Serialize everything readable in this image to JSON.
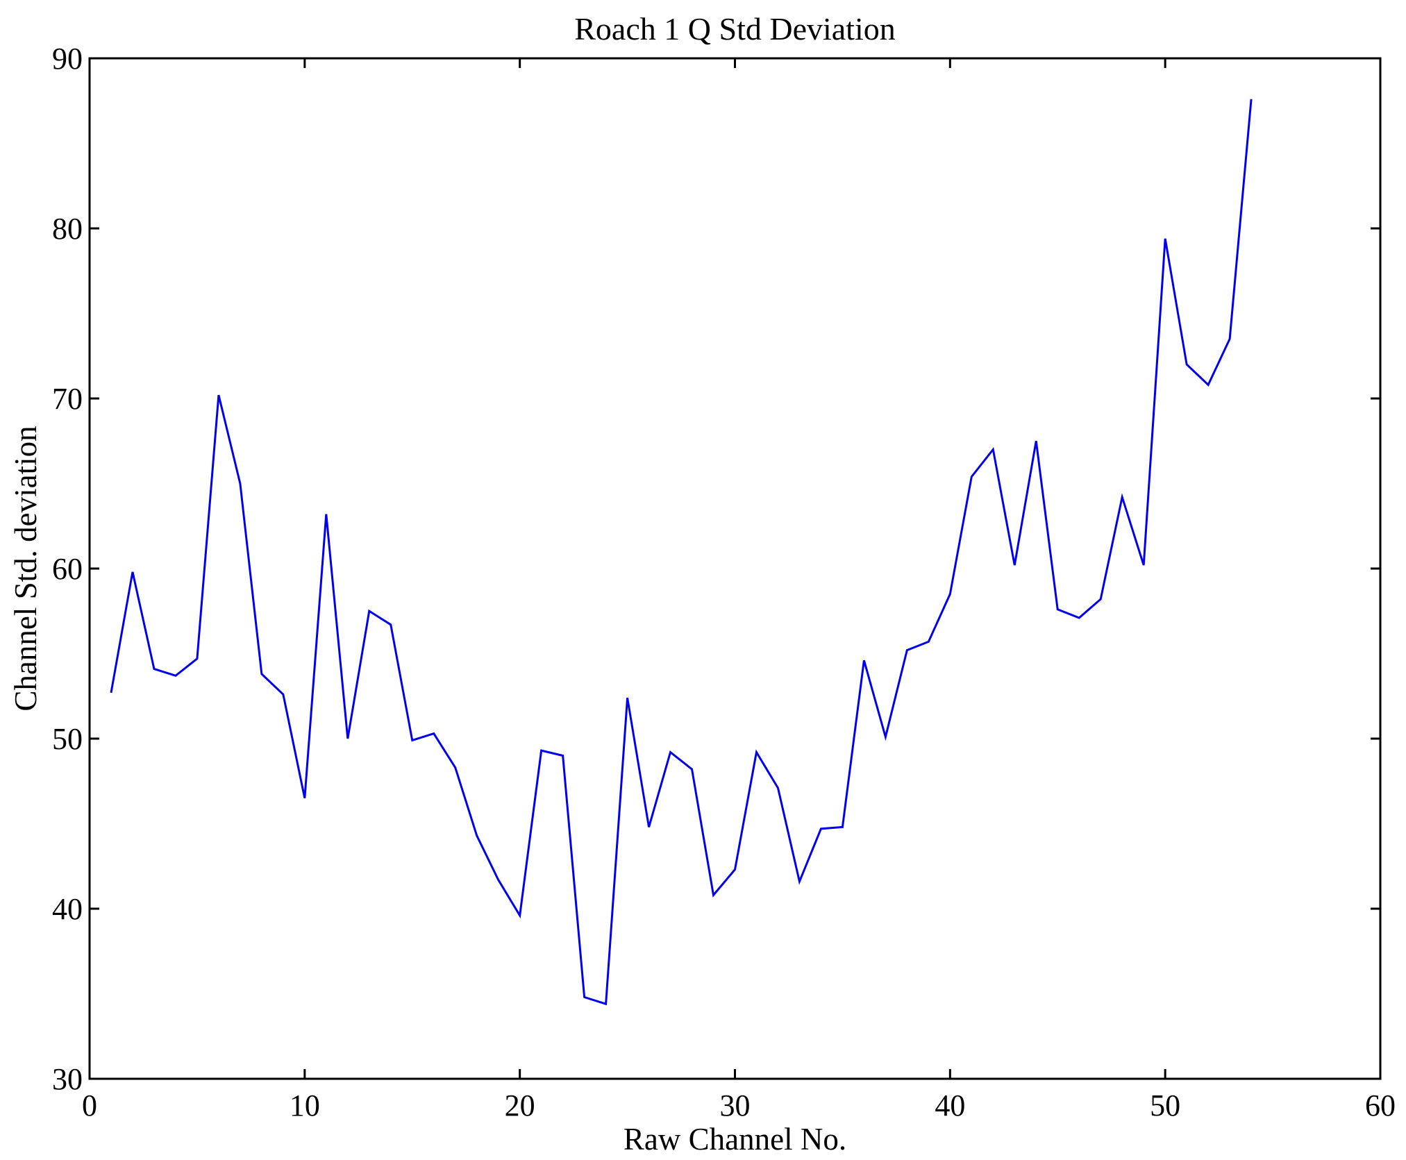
{
  "figure": {
    "title": "Roach 1 Q Std Deviation",
    "background_color": "#ffffff",
    "axis_color": "#000000"
  },
  "chart_data": {
    "type": "line",
    "title": "Roach 1 Q Std Deviation",
    "xlabel": "Raw Channel No.",
    "ylabel": "Channel Std. deviation",
    "xlim": [
      0,
      60
    ],
    "ylim": [
      30,
      90
    ],
    "x_ticks": [
      0,
      10,
      20,
      30,
      40,
      50,
      60
    ],
    "y_ticks": [
      30,
      40,
      50,
      60,
      70,
      80,
      90
    ],
    "grid": false,
    "legend_position": "none",
    "line_color": "#0000EE",
    "series": [
      {
        "name": "Channel Std. deviation",
        "x": [
          1,
          2,
          3,
          4,
          5,
          6,
          7,
          8,
          9,
          10,
          11,
          12,
          13,
          14,
          15,
          16,
          17,
          18,
          19,
          20,
          21,
          22,
          23,
          24,
          25,
          26,
          27,
          28,
          29,
          30,
          31,
          32,
          33,
          34,
          35,
          36,
          37,
          38,
          39,
          40,
          41,
          42,
          43,
          44,
          45,
          46,
          47,
          48,
          49,
          50,
          51,
          52,
          53,
          54
        ],
        "values": [
          52.7,
          59.8,
          54.1,
          53.7,
          54.7,
          70.2,
          65.0,
          53.8,
          52.6,
          46.5,
          63.2,
          50.0,
          57.5,
          56.7,
          49.9,
          50.3,
          48.3,
          44.3,
          41.7,
          39.6,
          49.3,
          49.0,
          34.8,
          34.4,
          52.4,
          44.8,
          49.2,
          48.2,
          40.8,
          42.3,
          49.2,
          47.1,
          41.6,
          44.7,
          44.8,
          54.6,
          50.1,
          55.2,
          55.7,
          58.5,
          65.4,
          67.0,
          60.2,
          67.5,
          57.6,
          57.1,
          58.2,
          64.2,
          60.2,
          79.4,
          72.0,
          70.8,
          73.5,
          87.6
        ]
      }
    ]
  }
}
